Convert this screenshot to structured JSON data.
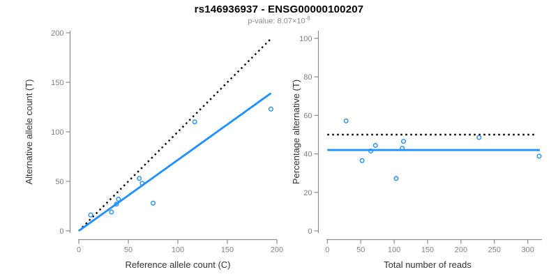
{
  "header": {
    "title": "rs146936937 - ENSG00000100207",
    "pvalue_text": "p-value: 8.07×10",
    "pvalue_exponent": "-8"
  },
  "colors": {
    "point_blue": "#1E90FF",
    "fit_blue": "#1E90FF",
    "identity_black": "#000000",
    "axis_gray": "#8c8c8c",
    "tick_label_gray": "#7f7f7f",
    "axis_title_color": "#333333"
  },
  "chart_data": [
    {
      "type": "scatter",
      "name": "allele-counts-panel",
      "xlabel": "Reference allele count (C)",
      "ylabel": "Alternative allele count (T)",
      "xlim": [
        0,
        200
      ],
      "ylim": [
        0,
        200
      ],
      "xticks": [
        0,
        50,
        100,
        150,
        200
      ],
      "yticks": [
        0,
        50,
        100,
        150,
        200
      ],
      "grid": false,
      "point_style": "open-circle",
      "points": [
        {
          "x": 12,
          "y": 16
        },
        {
          "x": 33,
          "y": 19
        },
        {
          "x": 38,
          "y": 27
        },
        {
          "x": 40,
          "y": 32
        },
        {
          "x": 61,
          "y": 53
        },
        {
          "x": 64,
          "y": 48
        },
        {
          "x": 75,
          "y": 28
        },
        {
          "x": 117,
          "y": 110
        },
        {
          "x": 194,
          "y": 123
        }
      ],
      "lines": [
        {
          "name": "identity-line",
          "style": "dotted",
          "color": "#000000",
          "x1": 0,
          "y1": 0,
          "x2": 193,
          "y2": 193
        },
        {
          "name": "fit-line",
          "style": "solid",
          "color": "#1E90FF",
          "x1": 0,
          "y1": 0,
          "x2": 194,
          "y2": 139
        }
      ]
    },
    {
      "type": "scatter",
      "name": "percentage-panel",
      "xlabel": "Total number of reads",
      "ylabel": "Percentage alternative (T)",
      "xlim": [
        0,
        320
      ],
      "ylim": [
        0,
        100
      ],
      "xticks": [
        0,
        50,
        100,
        150,
        200,
        250,
        300
      ],
      "yticks": [
        0,
        20,
        40,
        60,
        80,
        100
      ],
      "grid": false,
      "point_style": "open-circle",
      "points": [
        {
          "x": 28,
          "y": 57.1
        },
        {
          "x": 52,
          "y": 36.5
        },
        {
          "x": 65,
          "y": 41.5
        },
        {
          "x": 72,
          "y": 44.4
        },
        {
          "x": 103,
          "y": 27.2
        },
        {
          "x": 112,
          "y": 42.9
        },
        {
          "x": 114,
          "y": 46.5
        },
        {
          "x": 227,
          "y": 48.5
        },
        {
          "x": 317,
          "y": 38.8
        }
      ],
      "lines": [
        {
          "name": "null-50pct-line",
          "style": "dotted",
          "color": "#000000",
          "x1": 0,
          "y1": 50,
          "x2": 312,
          "y2": 50
        },
        {
          "name": "mean-pct-line",
          "style": "solid",
          "color": "#1E90FF",
          "x1": 0,
          "y1": 42,
          "x2": 318,
          "y2": 42
        }
      ]
    }
  ]
}
